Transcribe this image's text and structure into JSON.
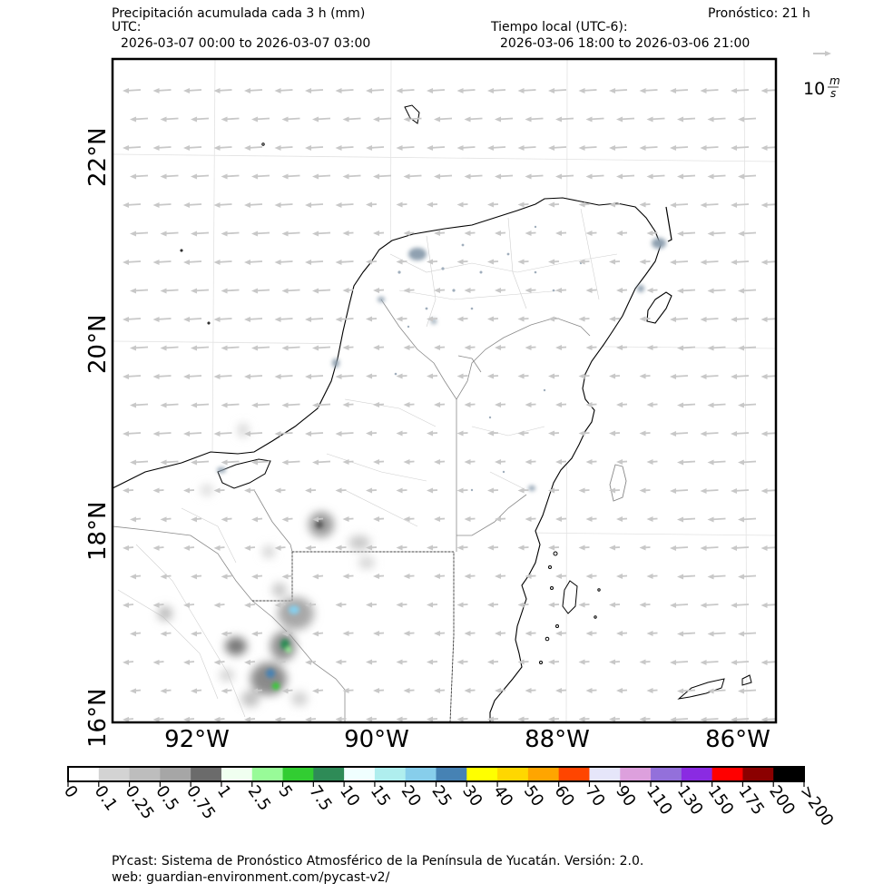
{
  "header": {
    "title": "Precipitación acumulada cada 3 h (mm)",
    "forecast": "Pronóstico: 21 h",
    "utc_label": "UTC:",
    "utc_range": "2026-03-07 00:00 to 2026-03-07 03:00",
    "local_label": "Tiempo local (UTC-6):",
    "local_range": "2026-03-06 18:00 to 2026-03-06 21:00"
  },
  "wind_key": {
    "base": "10",
    "num": "m",
    "den": "s"
  },
  "map": {
    "lat_labels": [
      "22°N",
      "20°N",
      "18°N",
      "16°N"
    ],
    "lon_labels": [
      "92°W",
      "90°W",
      "88°W",
      "86°W"
    ],
    "lat_range": [
      16,
      23.2
    ],
    "lon_range": [
      -93.15,
      -85.85
    ]
  },
  "colorbar": {
    "labels": [
      "0",
      "0.1",
      "0.25",
      "0.5",
      "0.75",
      "1",
      "2.5",
      "5",
      "7.5",
      "10",
      "15",
      "20",
      "25",
      "30",
      "40",
      "50",
      "60",
      "70",
      "90",
      "110",
      "130",
      "150",
      "175",
      "200",
      ">200"
    ],
    "colors": [
      "#ffffff",
      "#d3d3d3",
      "#bdbdbd",
      "#a6a6a6",
      "#6b6b6b",
      "#f0fff0",
      "#98fb98",
      "#32cd32",
      "#2e8b57",
      "#f0ffff",
      "#afeeee",
      "#87ceeb",
      "#4682b4",
      "#ffff00",
      "#ffd700",
      "#ffa500",
      "#ff4500",
      "#e6e6fa",
      "#dda0dd",
      "#9370db",
      "#8a2be2",
      "#ff0000",
      "#8b0000",
      "#000000"
    ]
  },
  "footer": {
    "line1": "PYcast: Sistema de Pronóstico Atmosférico de la Península de Yucatán. Versión: 2.0.",
    "line2": "web: guardian-environment.com/pycast-v2/"
  },
  "colors": {
    "wind_arrow": "#c8c8c8",
    "coast": "#000000",
    "border": "#9a9a9a",
    "rain_light": "#d0d0d0"
  }
}
